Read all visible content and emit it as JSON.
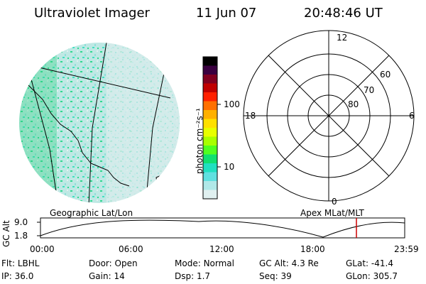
{
  "header": {
    "instrument": "Ultraviolet Imager",
    "date": "11 Jun 07",
    "time": "20:48:46 UT"
  },
  "colorbar": {
    "unit_label": "photon cm⁻²s⁻¹",
    "tick_labels": [
      "100",
      "10"
    ],
    "colors": [
      "#000000",
      "#3a0040",
      "#800020",
      "#c00000",
      "#ff2000",
      "#ff7000",
      "#ffb000",
      "#ffe000",
      "#e8ff00",
      "#a8ff00",
      "#50ff20",
      "#10e070",
      "#20e0c0",
      "#60e0e0",
      "#b0e8e8",
      "#e0f0f0"
    ]
  },
  "polar": {
    "mlt_labels": {
      "top": "12",
      "right": "6",
      "bottom": "0",
      "left": "18"
    },
    "lat_labels": [
      "60",
      "70",
      "80"
    ]
  },
  "orbit": {
    "ylabel": "GC Alt",
    "left_caption": "Geographic Lat/Lon",
    "right_caption": "Apex MLat/MLT",
    "y_ticks": [
      "9.0",
      "1.8"
    ],
    "x_ticks": [
      "00:00",
      "06:00",
      "12:00",
      "18:00",
      "23:59"
    ],
    "current_time_marker_color": "#cc0000"
  },
  "status": {
    "row1": [
      {
        "label": "Flt:",
        "value": "LBHL"
      },
      {
        "label": "Door:",
        "value": "Open"
      },
      {
        "label": "Mode:",
        "value": "Normal"
      },
      {
        "label": "GC Alt:",
        "value": "4.3 Re"
      },
      {
        "label": "GLat:",
        "value": "-41.4"
      }
    ],
    "row2": [
      {
        "label": "IP:",
        "value": "36.0"
      },
      {
        "label": "Gain:",
        "value": "14"
      },
      {
        "label": "Dsp:",
        "value": "1.7"
      },
      {
        "label": "Seq:",
        "value": "39"
      },
      {
        "label": "GLon:",
        "value": "305.7"
      }
    ]
  }
}
